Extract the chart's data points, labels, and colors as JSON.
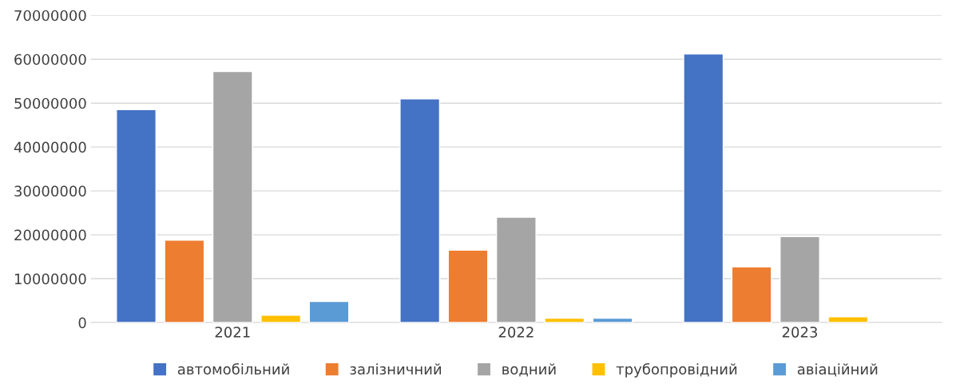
{
  "chart_data": {
    "type": "bar",
    "categories": [
      "2021",
      "2022",
      "2023"
    ],
    "series": [
      {
        "name": "автомобільний",
        "color": "#4472c4",
        "values": [
          48500000,
          51000000,
          61200000
        ]
      },
      {
        "name": "залізничний",
        "color": "#ed7d31",
        "values": [
          18800000,
          16500000,
          12700000
        ]
      },
      {
        "name": "водний",
        "color": "#a5a5a5",
        "values": [
          57200000,
          24000000,
          19600000
        ]
      },
      {
        "name": "трубопровідний",
        "color": "#ffc000",
        "values": [
          1700000,
          1000000,
          1300000
        ]
      },
      {
        "name": "авіаційний",
        "color": "#5b9bd5",
        "values": [
          4800000,
          1000000,
          null
        ]
      }
    ],
    "ylim": [
      0,
      70000000
    ],
    "yticks": [
      0,
      10000000,
      20000000,
      30000000,
      40000000,
      50000000,
      60000000,
      70000000
    ],
    "grid": "y",
    "legend": "bottom"
  }
}
